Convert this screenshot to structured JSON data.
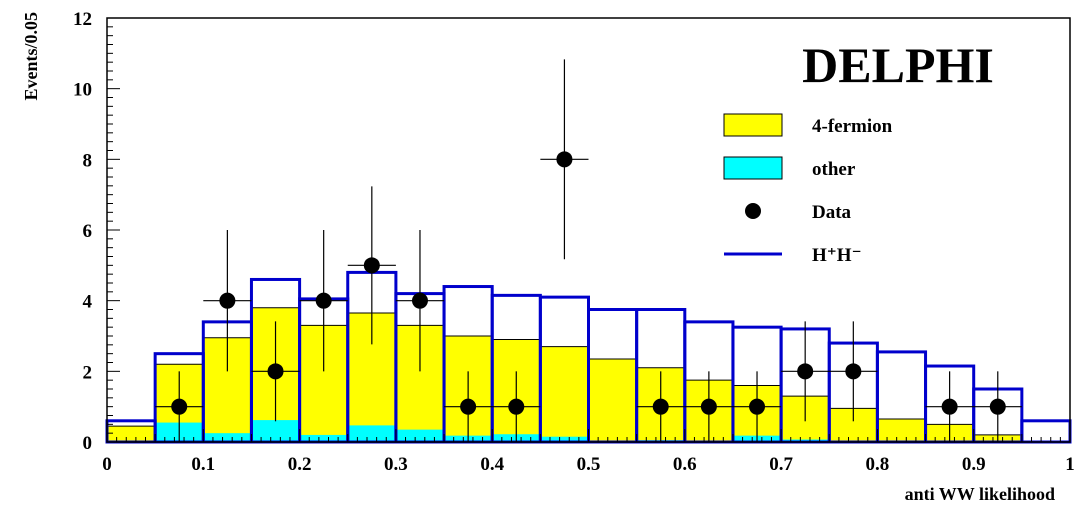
{
  "chart_data": {
    "type": "bar",
    "title": "DELPHI",
    "xlabel": "anti WW likelihood",
    "ylabel": "Events/0.05",
    "xlim": [
      0,
      1
    ],
    "ylim": [
      0,
      12
    ],
    "x_ticks": [
      "0",
      "0.1",
      "0.2",
      "0.3",
      "0.4",
      "0.5",
      "0.6",
      "0.7",
      "0.8",
      "0.9",
      "1"
    ],
    "y_ticks": [
      "0",
      "2",
      "4",
      "6",
      "8",
      "10",
      "12"
    ],
    "bin_width": 0.05,
    "bin_edges": [
      0,
      0.05,
      0.1,
      0.15,
      0.2,
      0.25,
      0.3,
      0.35,
      0.4,
      0.45,
      0.5,
      0.55,
      0.6,
      0.65,
      0.7,
      0.75,
      0.8,
      0.85,
      0.9,
      0.95,
      1.0
    ],
    "series": [
      {
        "name": "4-fermion",
        "kind": "filled",
        "color": "#ffff00",
        "values": [
          0.45,
          2.2,
          2.95,
          3.8,
          3.3,
          3.65,
          3.3,
          3.0,
          2.9,
          2.7,
          2.35,
          2.1,
          1.75,
          1.6,
          1.3,
          0.95,
          0.65,
          0.5,
          0.2,
          0.0
        ]
      },
      {
        "name": "other",
        "kind": "filled",
        "color": "#00ffff",
        "values": [
          0.0,
          0.55,
          0.25,
          0.62,
          0.2,
          0.47,
          0.35,
          0.18,
          0.22,
          0.15,
          0.0,
          0.05,
          0.0,
          0.18,
          0.07,
          0.0,
          0.0,
          0.0,
          0.0,
          0.0
        ]
      },
      {
        "name": "H⁺H⁻",
        "kind": "outline",
        "color": "#0000cc",
        "values": [
          0.6,
          2.5,
          3.4,
          4.6,
          4.05,
          4.8,
          4.2,
          4.4,
          4.15,
          4.1,
          3.75,
          3.75,
          3.4,
          3.25,
          3.2,
          2.8,
          2.55,
          2.15,
          1.5,
          0.6
        ]
      }
    ],
    "data_points": {
      "name": "Data",
      "x": [
        0.075,
        0.125,
        0.175,
        0.225,
        0.275,
        0.325,
        0.375,
        0.425,
        0.475,
        0.575,
        0.625,
        0.675,
        0.725,
        0.775,
        0.875,
        0.925
      ],
      "y": [
        1,
        4,
        2,
        4,
        5,
        4,
        1,
        1,
        8,
        1,
        1,
        1,
        2,
        2,
        1,
        1
      ]
    },
    "legend": {
      "placement": "top-right",
      "entries": [
        {
          "label": "4-fermion",
          "symbol": "box",
          "color": "#ffff00"
        },
        {
          "label": "other",
          "symbol": "box",
          "color": "#00ffff"
        },
        {
          "label": "Data",
          "symbol": "marker",
          "color": "#000000"
        },
        {
          "label": "H⁺H⁻",
          "symbol": "line",
          "color": "#0000cc"
        }
      ]
    }
  }
}
